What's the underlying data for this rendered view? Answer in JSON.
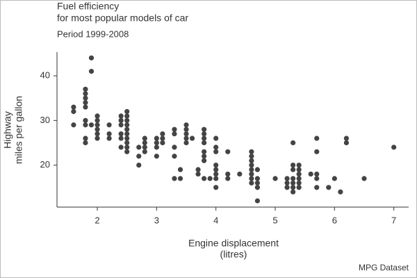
{
  "chart_data": {
    "type": "scatter",
    "title": [
      "Fuel efficiency",
      "for most popular models of car"
    ],
    "subtitle": "Period 1999-2008",
    "y_label": [
      "Highway",
      "miles per gallon"
    ],
    "x_label": [
      "Engine displacement",
      "(litres)"
    ],
    "caption": "MPG Dataset",
    "color": "#444444",
    "xlim": [
      1.32,
      7.25
    ],
    "ylim": [
      10.6,
      45.3
    ],
    "xticks": [
      2,
      3,
      4,
      5,
      6,
      7
    ],
    "yticks": [
      20,
      30,
      40
    ],
    "grid": false,
    "x": [
      1.6,
      1.6,
      1.6,
      1.8,
      1.8,
      1.8,
      1.8,
      1.8,
      1.8,
      1.8,
      1.8,
      1.8,
      1.9,
      1.9,
      1.9,
      2.0,
      2.0,
      2.0,
      2.0,
      2.0,
      2.0,
      2.2,
      2.2,
      2.2,
      2.4,
      2.4,
      2.4,
      2.4,
      2.4,
      2.4,
      2.5,
      2.5,
      2.5,
      2.5,
      2.5,
      2.5,
      2.5,
      2.5,
      2.5,
      2.5,
      2.7,
      2.7,
      2.7,
      2.8,
      2.8,
      2.8,
      2.8,
      3.0,
      3.0,
      3.0,
      3.0,
      3.1,
      3.1,
      3.1,
      3.3,
      3.3,
      3.3,
      3.3,
      3.3,
      3.4,
      3.4,
      3.5,
      3.5,
      3.5,
      3.5,
      3.5,
      3.6,
      3.7,
      3.7,
      3.8,
      3.8,
      3.8,
      3.8,
      3.8,
      3.8,
      3.8,
      3.8,
      3.9,
      4.0,
      4.0,
      4.0,
      4.0,
      4.0,
      4.0,
      4.0,
      4.0,
      4.2,
      4.2,
      4.2,
      4.4,
      4.6,
      4.6,
      4.6,
      4.6,
      4.6,
      4.6,
      4.6,
      4.6,
      4.7,
      4.7,
      4.7,
      4.7,
      4.7,
      5.0,
      5.2,
      5.2,
      5.2,
      5.3,
      5.3,
      5.3,
      5.3,
      5.3,
      5.3,
      5.3,
      5.4,
      5.4,
      5.4,
      5.4,
      5.4,
      5.4,
      5.6,
      5.7,
      5.7,
      5.7,
      5.7,
      5.7,
      5.9,
      6.0,
      6.1,
      6.2,
      6.2,
      6.5,
      7.0
    ],
    "y": [
      33,
      32,
      29,
      37,
      36,
      35,
      34,
      33,
      30,
      29,
      26,
      25,
      44,
      41,
      29,
      31,
      30,
      29,
      28,
      27,
      26,
      29,
      27,
      26,
      31,
      30,
      29,
      27,
      26,
      24,
      32,
      31,
      30,
      29,
      28,
      27,
      26,
      25,
      24,
      23,
      24,
      22,
      20,
      26,
      25,
      24,
      23,
      26,
      25,
      24,
      22,
      27,
      26,
      25,
      28,
      27,
      24,
      22,
      17,
      19,
      17,
      29,
      28,
      27,
      26,
      25,
      26,
      19,
      18,
      28,
      27,
      26,
      25,
      23,
      22,
      21,
      17,
      17,
      26,
      24,
      23,
      20,
      19,
      18,
      17,
      15,
      23,
      18,
      17,
      18,
      23,
      22,
      21,
      20,
      19,
      18,
      17,
      16,
      19,
      17,
      16,
      15,
      12,
      17,
      17,
      16,
      15,
      25,
      20,
      19,
      17,
      16,
      15,
      14,
      20,
      19,
      18,
      17,
      16,
      15,
      18,
      26,
      23,
      18,
      17,
      15,
      15,
      17,
      14,
      26,
      25,
      17,
      24
    ]
  }
}
